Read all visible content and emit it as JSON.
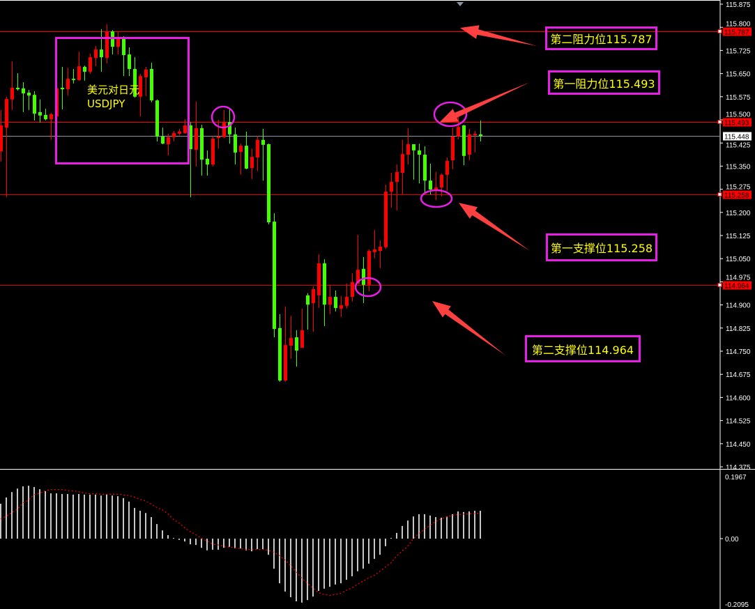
{
  "chart_data": {
    "type": "candlestick",
    "symbol_label": "美元对日元",
    "symbol_code": "USDJPY",
    "colors": {
      "up": "#ff0000",
      "down": "#44ff00",
      "level_line": "#ff0000",
      "bid_line": "#8a96a6",
      "annotation_box": "#e61ee6",
      "annotation_text": "#ffff00",
      "arrow": "#ff4040",
      "macd_histogram": "#c8c8c8",
      "macd_signal": "#ff0000"
    },
    "y_axis": {
      "min": 114.375,
      "max": 115.875,
      "ticks": [
        "115.875",
        "115.800",
        "115.725",
        "115.650",
        "115.575",
        "115.500",
        "115.425",
        "115.350",
        "115.275",
        "115.200",
        "115.125",
        "115.050",
        "114.975",
        "114.900",
        "114.825",
        "114.750",
        "114.675",
        "114.600",
        "114.525",
        "114.450",
        "114.375"
      ]
    },
    "current_price": "115.448",
    "levels": [
      {
        "price": 115.787,
        "tag": "115.787",
        "label": "第二阻力位115.787"
      },
      {
        "price": 115.493,
        "tag": "115.493",
        "label": "第一阻力位115.493"
      },
      {
        "price": 115.258,
        "tag": "115.258",
        "label": "第一支撑位115.258"
      },
      {
        "price": 114.964,
        "tag": "114.964",
        "label": "第二支撑位114.964"
      }
    ],
    "candles_ohlc": [
      [
        115.398,
        115.532,
        115.365,
        115.482
      ],
      [
        115.475,
        115.575,
        115.249,
        115.568
      ],
      [
        115.566,
        115.69,
        115.532,
        115.604
      ],
      [
        115.604,
        115.651,
        115.595,
        115.599
      ],
      [
        115.602,
        115.622,
        115.525,
        115.586
      ],
      [
        115.588,
        115.597,
        115.532,
        115.579
      ],
      [
        115.581,
        115.593,
        115.498,
        115.52
      ],
      [
        115.525,
        115.566,
        115.491,
        115.514
      ],
      [
        115.516,
        115.536,
        115.498,
        115.502
      ],
      [
        115.502,
        115.523,
        115.435,
        115.518
      ],
      [
        115.511,
        115.606,
        115.505,
        115.602
      ],
      [
        115.604,
        115.672,
        115.534,
        115.599
      ],
      [
        115.599,
        115.669,
        115.579,
        115.633
      ],
      [
        115.633,
        115.665,
        115.618,
        115.629
      ],
      [
        115.629,
        115.721,
        115.627,
        115.674
      ],
      [
        115.672,
        115.676,
        115.627,
        115.656
      ],
      [
        115.656,
        115.715,
        115.649,
        115.703
      ],
      [
        115.701,
        115.74,
        115.674,
        115.728
      ],
      [
        115.728,
        115.794,
        115.656,
        115.703
      ],
      [
        115.701,
        115.81,
        115.683,
        115.787
      ],
      [
        115.787,
        115.791,
        115.712,
        115.737
      ],
      [
        115.737,
        115.785,
        115.712,
        115.764
      ],
      [
        115.764,
        115.771,
        115.642,
        115.71
      ],
      [
        115.712,
        115.735,
        115.642,
        115.665
      ],
      [
        115.665,
        115.703,
        115.572,
        115.575
      ],
      [
        115.575,
        115.649,
        115.511,
        115.642
      ],
      [
        115.638,
        115.672,
        115.577,
        115.663
      ],
      [
        115.665,
        115.685,
        115.557,
        115.563
      ],
      [
        115.563,
        115.566,
        115.43,
        115.446
      ],
      [
        115.446,
        115.475,
        115.421,
        115.423
      ],
      [
        115.421,
        115.455,
        115.385,
        115.444
      ],
      [
        115.444,
        115.464,
        115.43,
        115.457
      ],
      [
        115.455,
        115.471,
        115.45,
        115.462
      ],
      [
        115.457,
        115.502,
        115.455,
        115.482
      ],
      [
        115.482,
        115.493,
        115.249,
        115.405
      ],
      [
        115.403,
        115.559,
        115.349,
        115.473
      ],
      [
        115.473,
        115.484,
        115.319,
        115.371
      ],
      [
        115.374,
        115.401,
        115.319,
        115.355
      ],
      [
        115.355,
        115.448,
        115.349,
        115.439
      ],
      [
        115.441,
        115.5,
        115.407,
        115.446
      ],
      [
        115.444,
        115.532,
        115.441,
        115.493
      ],
      [
        115.493,
        115.534,
        115.423,
        115.453
      ],
      [
        115.453,
        115.475,
        115.355,
        115.394
      ],
      [
        115.396,
        115.423,
        115.322,
        115.416
      ],
      [
        115.416,
        115.462,
        115.34,
        115.342
      ],
      [
        115.344,
        115.407,
        115.308,
        115.38
      ],
      [
        115.378,
        115.448,
        115.333,
        115.435
      ],
      [
        115.435,
        115.471,
        115.303,
        115.419
      ],
      [
        115.421,
        115.423,
        115.161,
        115.168
      ],
      [
        115.17,
        115.197,
        114.795,
        114.822
      ],
      [
        114.825,
        114.87,
        114.651,
        114.655
      ],
      [
        114.655,
        114.895,
        114.651,
        114.77
      ],
      [
        114.768,
        114.865,
        114.725,
        114.793
      ],
      [
        114.795,
        114.818,
        114.7,
        114.752
      ],
      [
        114.761,
        114.888,
        114.761,
        114.818
      ],
      [
        114.931,
        114.938,
        114.82,
        114.901
      ],
      [
        114.906,
        114.96,
        114.813,
        114.951
      ],
      [
        114.931,
        115.064,
        114.89,
        115.035
      ],
      [
        115.035,
        115.048,
        114.831,
        114.901
      ],
      [
        114.901,
        114.965,
        114.87,
        114.926
      ],
      [
        114.926,
        114.947,
        114.879,
        114.89
      ],
      [
        114.888,
        114.929,
        114.861,
        114.899
      ],
      [
        114.897,
        114.969,
        114.888,
        114.926
      ],
      [
        114.926,
        115.003,
        114.911,
        114.974
      ],
      [
        114.969,
        115.127,
        114.969,
        115.014
      ],
      [
        115.017,
        115.055,
        114.906,
        114.965
      ],
      [
        114.965,
        115.08,
        114.944,
        115.075
      ],
      [
        115.071,
        115.143,
        115.051,
        115.08
      ],
      [
        115.075,
        115.109,
        115.019,
        115.089
      ],
      [
        115.087,
        115.29,
        115.082,
        115.267
      ],
      [
        115.267,
        115.328,
        115.215,
        115.299
      ],
      [
        115.299,
        115.355,
        115.206,
        115.331
      ],
      [
        115.328,
        115.435,
        115.258,
        115.389
      ],
      [
        115.387,
        115.473,
        115.355,
        115.421
      ],
      [
        115.421,
        115.421,
        115.306,
        115.401
      ],
      [
        115.401,
        115.423,
        115.294,
        115.387
      ],
      [
        115.387,
        115.414,
        115.261,
        115.303
      ],
      [
        115.303,
        115.358,
        115.258,
        115.274
      ],
      [
        115.274,
        115.331,
        115.24,
        115.281
      ],
      [
        115.281,
        115.326,
        115.252,
        115.322
      ],
      [
        115.322,
        115.378,
        115.27,
        115.367
      ],
      [
        115.369,
        115.475,
        115.34,
        115.446
      ],
      [
        115.446,
        115.509,
        115.437,
        115.477
      ],
      [
        115.482,
        115.484,
        115.353,
        115.383
      ],
      [
        115.387,
        115.471,
        115.369,
        115.453
      ],
      [
        115.45,
        115.464,
        115.394,
        115.455
      ],
      [
        115.453,
        115.498,
        115.43,
        115.448
      ]
    ],
    "macd": {
      "axis_labels": [
        "0.1967",
        "0.00",
        "-0.2095"
      ],
      "max": 0.1967,
      "min": -0.2095,
      "histogram": [
        0.11,
        0.13,
        0.147,
        0.158,
        0.165,
        0.167,
        0.163,
        0.156,
        0.15,
        0.143,
        0.143,
        0.141,
        0.141,
        0.139,
        0.141,
        0.139,
        0.139,
        0.139,
        0.136,
        0.139,
        0.136,
        0.134,
        0.128,
        0.117,
        0.097,
        0.088,
        0.081,
        0.068,
        0.046,
        0.026,
        0.011,
        0.002,
        -0.004,
        -0.009,
        -0.018,
        -0.02,
        -0.029,
        -0.037,
        -0.035,
        -0.035,
        -0.029,
        -0.026,
        -0.031,
        -0.031,
        -0.037,
        -0.04,
        -0.033,
        -0.033,
        -0.051,
        -0.095,
        -0.141,
        -0.167,
        -0.185,
        -0.198,
        -0.202,
        -0.194,
        -0.183,
        -0.165,
        -0.158,
        -0.152,
        -0.145,
        -0.141,
        -0.13,
        -0.119,
        -0.103,
        -0.095,
        -0.079,
        -0.064,
        -0.051,
        -0.024,
        0.002,
        0.018,
        0.04,
        0.057,
        0.07,
        0.077,
        0.077,
        0.073,
        0.068,
        0.066,
        0.07,
        0.077,
        0.086,
        0.084,
        0.086,
        0.088,
        0.088
      ],
      "signal": [
        0.062,
        0.071,
        0.082,
        0.093,
        0.113,
        0.122,
        0.139,
        0.144,
        0.151,
        0.155,
        0.155,
        0.155,
        0.152,
        0.151,
        0.148,
        0.144,
        0.142,
        0.142,
        0.14,
        0.14,
        0.14,
        0.14,
        0.138,
        0.136,
        0.131,
        0.124,
        0.119,
        0.109,
        0.098,
        0.091,
        0.078,
        0.06,
        0.049,
        0.034,
        0.022,
        0.012,
        0.001,
        -0.008,
        -0.017,
        -0.02,
        -0.024,
        -0.027,
        -0.029,
        -0.032,
        -0.034,
        -0.034,
        -0.034,
        -0.034,
        -0.037,
        -0.043,
        -0.054,
        -0.068,
        -0.085,
        -0.105,
        -0.125,
        -0.141,
        -0.156,
        -0.171,
        -0.176,
        -0.179,
        -0.176,
        -0.173,
        -0.163,
        -0.155,
        -0.144,
        -0.134,
        -0.124,
        -0.116,
        -0.103,
        -0.089,
        -0.076,
        -0.055,
        -0.039,
        -0.024,
        0.0,
        0.016,
        0.029,
        0.042,
        0.054,
        0.062,
        0.069,
        0.073,
        0.076,
        0.077,
        0.078,
        0.079,
        0.081
      ]
    }
  }
}
